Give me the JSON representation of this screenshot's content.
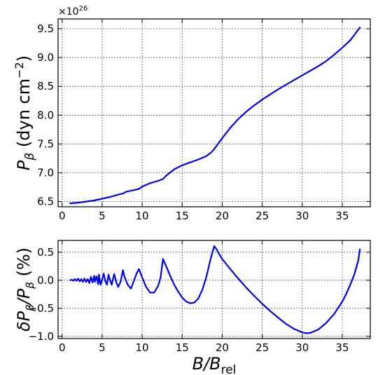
{
  "chart_data": [
    {
      "type": "line",
      "title": "",
      "ylabel": "P_β (dyn cm⁻²)",
      "ylabel_main": "P",
      "ylabel_sub": "β",
      "ylabel_units": " (dyn cm",
      "ylabel_exp": "−2",
      "ylabel_close": ")",
      "multiplier_base": "×10",
      "multiplier_exp": "26",
      "xlim": [
        -0.5,
        38.5
      ],
      "ylim": [
        6.41,
        9.67
      ],
      "x_ticks": [
        0,
        5,
        10,
        15,
        20,
        25,
        30,
        35
      ],
      "x_tick_labels": [
        "0",
        "5",
        "10",
        "15",
        "20",
        "25",
        "30",
        "35"
      ],
      "y_ticks": [
        6.5,
        7.0,
        7.5,
        8.0,
        8.5,
        9.0,
        9.5
      ],
      "y_tick_labels": [
        "6.5",
        "7.0",
        "7.5",
        "8.0",
        "8.5",
        "9.0",
        "9.5"
      ],
      "grid": true,
      "series": [
        {
          "color": "#0000e6",
          "x": [
            1.0,
            2.0,
            3.0,
            4.0,
            5.0,
            6.0,
            7.0,
            7.6,
            8.0,
            9.0,
            9.6,
            10.0,
            11.0,
            12.0,
            12.6,
            13.0,
            14.0,
            15.0,
            16.0,
            17.0,
            18.0,
            18.6,
            19.0,
            20.0,
            21.0,
            22.0,
            23.0,
            24.0,
            25.0,
            26.0,
            27.0,
            28.0,
            29.0,
            30.0,
            31.0,
            32.0,
            33.0,
            34.0,
            35.0,
            36.0,
            37.2
          ],
          "y": [
            6.47,
            6.48,
            6.5,
            6.52,
            6.55,
            6.58,
            6.62,
            6.64,
            6.67,
            6.7,
            6.72,
            6.76,
            6.82,
            6.86,
            6.89,
            6.95,
            7.06,
            7.13,
            7.18,
            7.23,
            7.29,
            7.35,
            7.41,
            7.6,
            7.78,
            7.93,
            8.06,
            8.17,
            8.27,
            8.36,
            8.45,
            8.53,
            8.61,
            8.69,
            8.77,
            8.85,
            8.94,
            9.05,
            9.17,
            9.3,
            9.52
          ]
        }
      ]
    },
    {
      "type": "line",
      "title": "",
      "xlabel": "B/B_rel",
      "xlabel_main": "B/B",
      "xlabel_sub": "rel",
      "ylabel": "δP_β/P_β (%)",
      "ylabel_parts": [
        "δP",
        "β",
        "/P",
        "β",
        " (%)"
      ],
      "xlim": [
        -0.5,
        38.5
      ],
      "ylim": [
        -1.04,
        0.71
      ],
      "x_ticks": [
        0,
        5,
        10,
        15,
        20,
        25,
        30,
        35
      ],
      "x_tick_labels": [
        "0",
        "5",
        "10",
        "15",
        "20",
        "25",
        "30",
        "35"
      ],
      "y_ticks": [
        -1.0,
        -0.5,
        0.0,
        0.5
      ],
      "y_tick_labels": [
        "−1.0",
        "−0.5",
        "0.0",
        "0.5"
      ],
      "grid": true,
      "series": [
        {
          "color": "#0000e6",
          "x": [
            1.0,
            1.2,
            1.4,
            1.6,
            1.8,
            2.0,
            2.2,
            2.4,
            2.6,
            2.8,
            3.0,
            3.2,
            3.4,
            3.6,
            3.8,
            4.0,
            4.1,
            4.3,
            4.5,
            4.6,
            4.8,
            5.0,
            5.2,
            5.4,
            5.6,
            5.8,
            6.0,
            6.2,
            6.5,
            6.8,
            7.0,
            7.3,
            7.6,
            7.8,
            8.2,
            8.6,
            9.0,
            9.3,
            9.6,
            10.0,
            10.5,
            11.0,
            11.5,
            12.0,
            12.3,
            12.6,
            13.0,
            13.5,
            14.0,
            14.5,
            15.0,
            15.5,
            16.0,
            16.5,
            17.0,
            17.5,
            18.0,
            18.5,
            19.0,
            19.3,
            19.6,
            20.0,
            21.0,
            22.0,
            23.0,
            24.0,
            25.0,
            26.0,
            27.0,
            28.0,
            29.0,
            30.0,
            30.5,
            31.0,
            32.0,
            33.0,
            34.0,
            35.0,
            35.5,
            36.0,
            36.5,
            37.0,
            37.2
          ],
          "y": [
            0.0,
            0.01,
            -0.01,
            0.02,
            -0.01,
            0.03,
            -0.02,
            0.02,
            -0.03,
            0.03,
            -0.03,
            0.02,
            -0.05,
            0.06,
            -0.04,
            0.08,
            -0.03,
            0.07,
            -0.07,
            0.1,
            -0.08,
            0.01,
            0.12,
            -0.02,
            -0.08,
            0.1,
            0.0,
            -0.08,
            0.11,
            -0.05,
            -0.12,
            -0.03,
            0.18,
            0.06,
            -0.08,
            -0.15,
            0.0,
            0.12,
            0.2,
            0.05,
            -0.12,
            -0.22,
            -0.22,
            -0.1,
            0.05,
            0.38,
            0.25,
            0.08,
            -0.08,
            -0.2,
            -0.31,
            -0.38,
            -0.41,
            -0.4,
            -0.33,
            -0.18,
            0.05,
            0.35,
            0.61,
            0.55,
            0.47,
            0.38,
            0.2,
            0.03,
            -0.13,
            -0.28,
            -0.42,
            -0.55,
            -0.67,
            -0.78,
            -0.87,
            -0.93,
            -0.945,
            -0.94,
            -0.88,
            -0.76,
            -0.6,
            -0.38,
            -0.24,
            -0.08,
            0.1,
            0.35,
            0.55
          ]
        }
      ]
    }
  ]
}
